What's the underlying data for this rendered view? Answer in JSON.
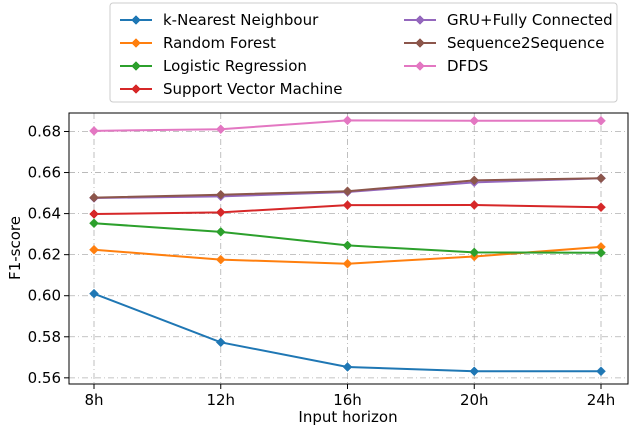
{
  "chart_data": {
    "type": "line",
    "xlabel": "Input horizon",
    "ylabel": "F1-score",
    "categories": [
      "8h",
      "12h",
      "16h",
      "20h",
      "24h"
    ],
    "ylim": [
      0.557,
      0.689
    ],
    "yticks": [
      0.56,
      0.58,
      0.6,
      0.62,
      0.64,
      0.66,
      0.68
    ],
    "grid": true,
    "legend_position": "top",
    "series": [
      {
        "name": "k-Nearest Neighbour",
        "color": "#1f77b4",
        "values": [
          0.601,
          0.5773,
          0.5653,
          0.5632,
          0.5632
        ]
      },
      {
        "name": "Random Forest",
        "color": "#ff7f0e",
        "values": [
          0.6224,
          0.6176,
          0.6156,
          0.6191,
          0.6238
        ]
      },
      {
        "name": "Logistic Regression",
        "color": "#2ca02c",
        "values": [
          0.6353,
          0.6311,
          0.6245,
          0.6211,
          0.6209
        ]
      },
      {
        "name": "Support Vector Machine",
        "color": "#d62728",
        "values": [
          0.6398,
          0.6406,
          0.6441,
          0.6442,
          0.6431
        ]
      },
      {
        "name": "GRU+Fully Connected",
        "color": "#9467bd",
        "values": [
          0.6476,
          0.6484,
          0.6505,
          0.6552,
          0.6572
        ]
      },
      {
        "name": "Sequence2Sequence",
        "color": "#8c564b",
        "values": [
          0.6478,
          0.6492,
          0.6509,
          0.6562,
          0.6572
        ]
      },
      {
        "name": "DFDS",
        "color": "#e377c2",
        "values": [
          0.6803,
          0.6811,
          0.6854,
          0.6852,
          0.6852
        ]
      }
    ]
  }
}
